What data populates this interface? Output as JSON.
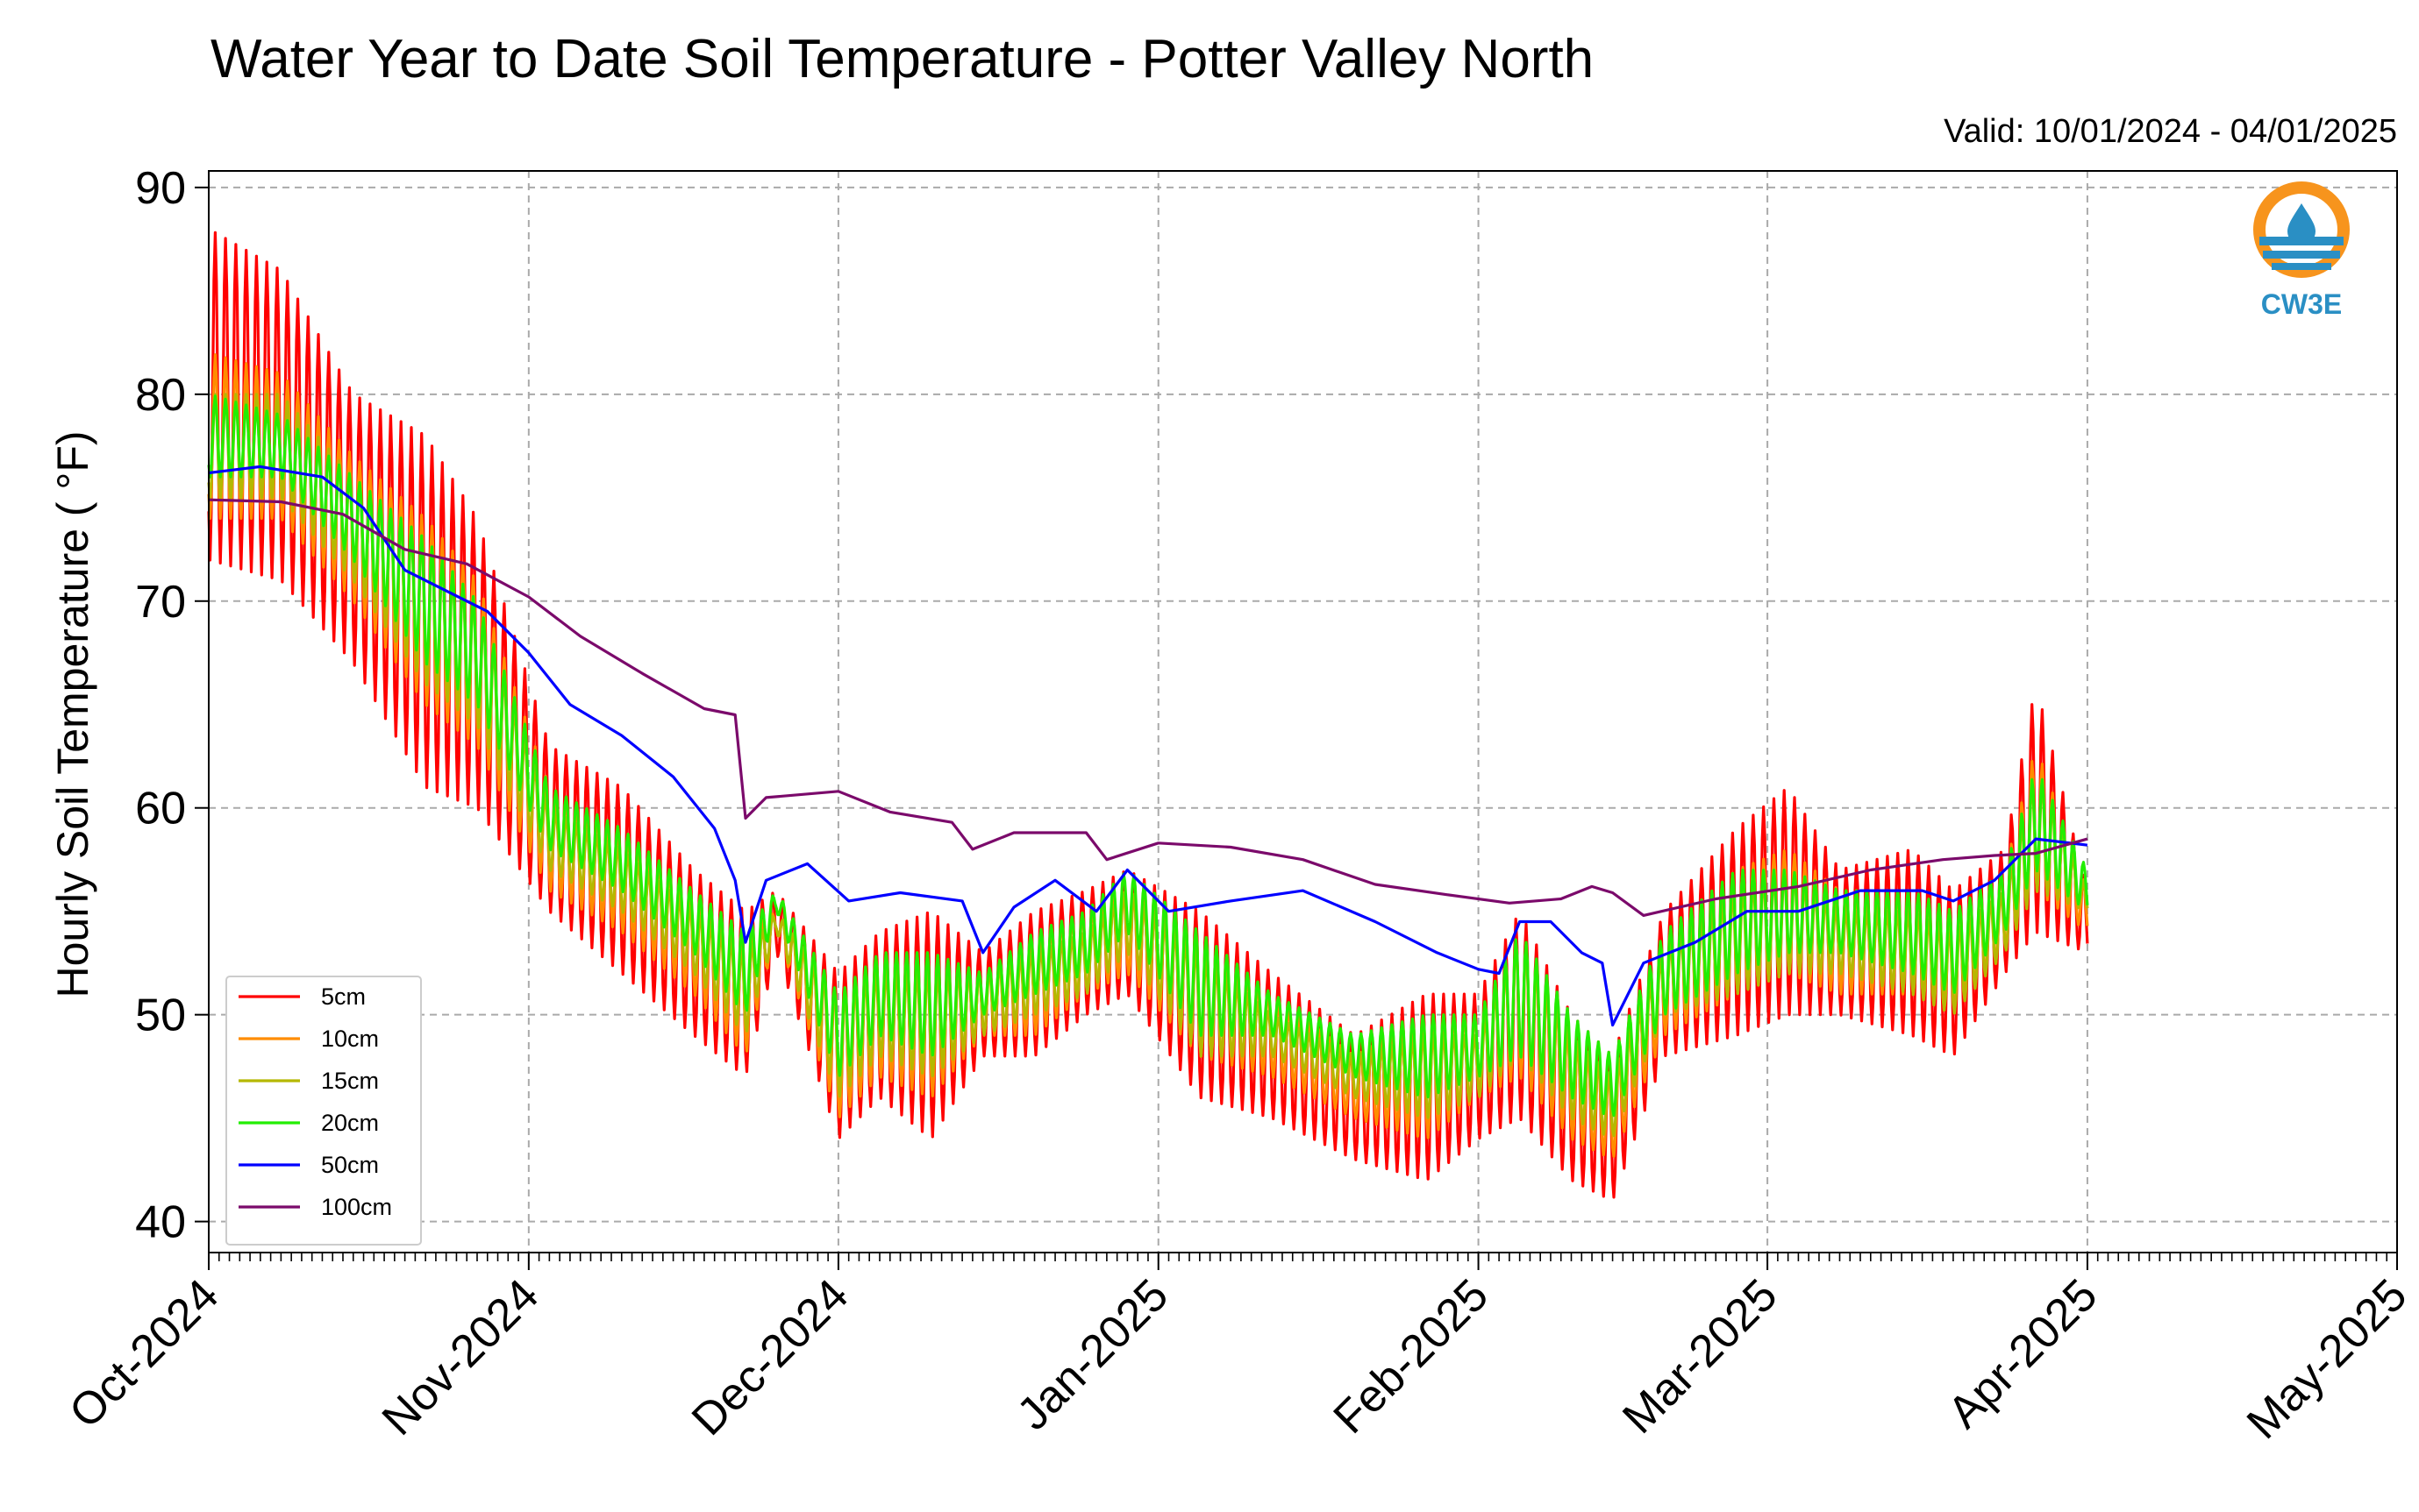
{
  "chart_data": {
    "type": "line",
    "title": "Water Year to Date Soil Temperature - Potter Valley North",
    "subtitle": "Valid: 10/01/2024 - 04/01/2025",
    "ylabel": "Hourly Soil Temperature ( °F)",
    "xlabel": "",
    "ylim": [
      38.5,
      90.8
    ],
    "xlim": [
      "2024-10-01",
      "2025-05-01"
    ],
    "y_ticks": [
      40,
      50,
      60,
      70,
      80,
      90
    ],
    "x_ticks": [
      "Oct-2024",
      "Nov-2024",
      "Dec-2024",
      "Jan-2025",
      "Feb-2025",
      "Mar-2025",
      "Apr-2025",
      "May-2025"
    ],
    "x_tick_dates": [
      "2024-10-01",
      "2024-11-01",
      "2024-12-01",
      "2025-01-01",
      "2025-02-01",
      "2025-03-01",
      "2025-04-01",
      "2025-05-01"
    ],
    "grid": true,
    "legend_position": "lower-left",
    "series": [
      {
        "name": "5cm",
        "color": "#ff0000",
        "x": [
          "2024-10-01",
          "2024-10-08",
          "2024-10-15",
          "2024-10-22",
          "2024-10-27",
          "2024-11-03",
          "2024-11-10",
          "2024-11-17",
          "2024-11-22",
          "2024-11-25",
          "2024-12-01",
          "2024-12-05",
          "2024-12-10",
          "2024-12-15",
          "2024-12-20",
          "2024-12-25",
          "2024-12-29",
          "2025-01-05",
          "2025-01-12",
          "2025-01-20",
          "2025-01-27",
          "2025-02-01",
          "2025-02-05",
          "2025-02-10",
          "2025-02-14",
          "2025-02-19",
          "2025-02-26",
          "2025-03-03",
          "2025-03-08",
          "2025-03-15",
          "2025-03-19",
          "2025-03-24",
          "2025-03-27",
          "2025-04-01"
        ],
        "y_max": [
          88,
          86,
          80,
          78,
          74,
          63,
          61,
          57,
          55,
          56,
          52,
          54,
          55,
          53,
          55,
          56,
          57,
          55,
          52,
          49,
          51,
          51,
          55,
          50,
          48,
          55,
          59,
          61,
          57,
          58,
          56,
          58,
          66,
          56
        ],
        "y_min": [
          72,
          71,
          67,
          61,
          60,
          55,
          52,
          49,
          47,
          53,
          44,
          46,
          44,
          48,
          48,
          50,
          51,
          46,
          45,
          43,
          42,
          44,
          45,
          42,
          41,
          48,
          49,
          50,
          50,
          49,
          48,
          52,
          54,
          53
        ]
      },
      {
        "name": "10cm",
        "color": "#ff8c00",
        "x": [
          "2024-10-01",
          "2024-10-08",
          "2024-10-15",
          "2024-10-22",
          "2024-10-27",
          "2024-11-03",
          "2024-11-10",
          "2024-11-17",
          "2024-11-22",
          "2024-11-25",
          "2024-12-01",
          "2024-12-05",
          "2024-12-10",
          "2024-12-15",
          "2024-12-20",
          "2024-12-25",
          "2024-12-29",
          "2025-01-05",
          "2025-01-12",
          "2025-01-20",
          "2025-01-27",
          "2025-02-01",
          "2025-02-05",
          "2025-02-10",
          "2025-02-14",
          "2025-02-19",
          "2025-02-26",
          "2025-03-03",
          "2025-03-08",
          "2025-03-15",
          "2025-03-19",
          "2025-03-24",
          "2025-03-27",
          "2025-04-01"
        ],
        "y_max": [
          82,
          81,
          77,
          74,
          71,
          61,
          59,
          56,
          54,
          55,
          51,
          53,
          53,
          52,
          54,
          55,
          56,
          54,
          51,
          48,
          50,
          50,
          54,
          49,
          47,
          54,
          57,
          58,
          56,
          56,
          55,
          57,
          63,
          56
        ],
        "y_min": [
          74,
          74,
          70,
          65,
          63,
          56,
          54,
          51,
          48,
          54,
          45,
          47,
          46,
          49,
          49,
          51,
          52,
          48,
          47,
          45,
          44,
          46,
          47,
          44,
          43,
          49,
          51,
          52,
          51,
          51,
          50,
          53,
          56,
          54
        ]
      },
      {
        "name": "15cm",
        "color": "#b5b800",
        "x": [
          "2024-10-01",
          "2024-10-08",
          "2024-10-15",
          "2024-10-22",
          "2024-10-27",
          "2024-11-03",
          "2024-11-10",
          "2024-11-17",
          "2024-11-22",
          "2024-11-25",
          "2024-12-01",
          "2024-12-05",
          "2024-12-10",
          "2024-12-15",
          "2024-12-20",
          "2024-12-25",
          "2024-12-29",
          "2025-01-05",
          "2025-01-12",
          "2025-01-20",
          "2025-01-27",
          "2025-02-01",
          "2025-02-05",
          "2025-02-10",
          "2025-02-14",
          "2025-02-19",
          "2025-02-26",
          "2025-03-03",
          "2025-03-08",
          "2025-03-15",
          "2025-03-19",
          "2025-03-24",
          "2025-03-27",
          "2025-04-01"
        ],
        "y_max": [
          80,
          80,
          76,
          73,
          70,
          60,
          58,
          55,
          53,
          55,
          51,
          52,
          52,
          52,
          53,
          54,
          56,
          53,
          50,
          48,
          49,
          49,
          54,
          49,
          47,
          53,
          56,
          57,
          55,
          55,
          54,
          56,
          62,
          56
        ],
        "y_min": [
          75,
          75,
          71,
          66,
          64,
          57,
          55,
          52,
          49,
          54,
          46,
          48,
          47,
          49,
          50,
          51,
          53,
          48,
          48,
          46,
          45,
          46,
          48,
          45,
          44,
          50,
          51,
          52,
          52,
          51,
          50,
          53,
          56,
          55
        ]
      },
      {
        "name": "20cm",
        "color": "#22ee00",
        "x": [
          "2024-10-01",
          "2024-10-08",
          "2024-10-15",
          "2024-10-22",
          "2024-10-27",
          "2024-11-03",
          "2024-11-10",
          "2024-11-17",
          "2024-11-22",
          "2024-11-25",
          "2024-12-01",
          "2024-12-05",
          "2024-12-10",
          "2024-12-15",
          "2024-12-20",
          "2024-12-25",
          "2024-12-29",
          "2025-01-05",
          "2025-01-12",
          "2025-01-20",
          "2025-01-27",
          "2025-02-01",
          "2025-02-05",
          "2025-02-10",
          "2025-02-14",
          "2025-02-19",
          "2025-02-26",
          "2025-03-03",
          "2025-03-08",
          "2025-03-15",
          "2025-03-19",
          "2025-03-24",
          "2025-03-27",
          "2025-04-01"
        ],
        "y_max": [
          80,
          79,
          76,
          73,
          70,
          61,
          59,
          56,
          54,
          56,
          51,
          53,
          53,
          52,
          54,
          55,
          57,
          54,
          51,
          49,
          50,
          50,
          54,
          50,
          48,
          54,
          57,
          57,
          56,
          56,
          55,
          57,
          62,
          57
        ],
        "y_min": [
          76,
          76,
          72,
          67,
          65,
          58,
          56,
          53,
          50,
          55,
          47,
          49,
          48,
          50,
          51,
          52,
          54,
          49,
          49,
          47,
          46,
          47,
          48,
          46,
          45,
          50,
          52,
          53,
          53,
          52,
          51,
          54,
          57,
          55
        ]
      },
      {
        "name": "50cm",
        "color": "#0000ff",
        "x": [
          "2024-10-01",
          "2024-10-06",
          "2024-10-12",
          "2024-10-16",
          "2024-10-20",
          "2024-10-26",
          "2024-10-28",
          "2024-11-01",
          "2024-11-05",
          "2024-11-10",
          "2024-11-15",
          "2024-11-19",
          "2024-11-21",
          "2024-11-22",
          "2024-11-24",
          "2024-11-28",
          "2024-12-02",
          "2024-12-07",
          "2024-12-13",
          "2024-12-15",
          "2024-12-18",
          "2024-12-22",
          "2024-12-26",
          "2024-12-29",
          "2025-01-02",
          "2025-01-08",
          "2025-01-15",
          "2025-01-22",
          "2025-01-28",
          "2025-02-01",
          "2025-02-03",
          "2025-02-05",
          "2025-02-08",
          "2025-02-11",
          "2025-02-13",
          "2025-02-14",
          "2025-02-17",
          "2025-02-22",
          "2025-02-27",
          "2025-03-04",
          "2025-03-10",
          "2025-03-16",
          "2025-03-19",
          "2025-03-23",
          "2025-03-27",
          "2025-04-01"
        ],
        "y": [
          76.2,
          76.5,
          76.0,
          74.5,
          71.5,
          70.0,
          69.5,
          67.5,
          65.0,
          63.5,
          61.5,
          59.0,
          56.5,
          53.5,
          56.5,
          57.3,
          55.5,
          55.9,
          55.5,
          53.0,
          55.2,
          56.5,
          55.0,
          57.0,
          55.0,
          55.5,
          56.0,
          54.5,
          53.0,
          52.2,
          52.0,
          54.5,
          54.5,
          53.0,
          52.5,
          49.5,
          52.5,
          53.5,
          55.0,
          55.0,
          56.0,
          56.0,
          55.5,
          56.5,
          58.5,
          58.2
        ]
      },
      {
        "name": "100cm",
        "color": "#7b0a6b",
        "x": [
          "2024-10-01",
          "2024-10-08",
          "2024-10-14",
          "2024-10-20",
          "2024-10-26",
          "2024-11-01",
          "2024-11-06",
          "2024-11-12",
          "2024-11-18",
          "2024-11-21",
          "2024-11-22",
          "2024-11-24",
          "2024-12-01",
          "2024-12-06",
          "2024-12-12",
          "2024-12-14",
          "2024-12-18",
          "2024-12-25",
          "2024-12-27",
          "2025-01-01",
          "2025-01-08",
          "2025-01-15",
          "2025-01-22",
          "2025-01-29",
          "2025-02-04",
          "2025-02-09",
          "2025-02-12",
          "2025-02-14",
          "2025-02-17",
          "2025-02-24",
          "2025-03-04",
          "2025-03-11",
          "2025-03-18",
          "2025-03-23",
          "2025-03-27",
          "2025-04-01"
        ],
        "y": [
          74.9,
          74.8,
          74.2,
          72.5,
          71.8,
          70.2,
          68.3,
          66.5,
          64.8,
          64.5,
          59.5,
          60.5,
          60.8,
          59.8,
          59.3,
          58.0,
          58.8,
          58.8,
          57.5,
          58.3,
          58.1,
          57.5,
          56.3,
          55.8,
          55.4,
          55.6,
          56.2,
          55.9,
          54.8,
          55.6,
          56.2,
          57.0,
          57.5,
          57.7,
          57.8,
          58.5
        ]
      }
    ]
  },
  "logo": {
    "text": "CW3E",
    "ring_color": "#f7941d",
    "water_color": "#2a8fc4"
  }
}
